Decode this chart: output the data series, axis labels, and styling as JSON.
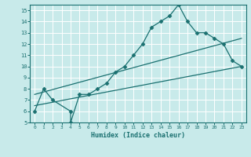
{
  "title": "",
  "xlabel": "Humidex (Indice chaleur)",
  "ylabel": "",
  "bg_color": "#c8eaea",
  "grid_color": "#ffffff",
  "line_color": "#1a7070",
  "xlim": [
    -0.5,
    23.5
  ],
  "ylim": [
    5,
    15.5
  ],
  "yticks": [
    5,
    6,
    7,
    8,
    9,
    10,
    11,
    12,
    13,
    14,
    15
  ],
  "xticks": [
    0,
    1,
    2,
    3,
    4,
    5,
    6,
    7,
    8,
    9,
    10,
    11,
    12,
    13,
    14,
    15,
    16,
    17,
    18,
    19,
    20,
    21,
    22,
    23
  ],
  "line1_x": [
    0,
    1,
    2,
    4,
    4,
    5,
    6,
    7,
    8,
    9,
    10,
    11,
    12,
    13,
    14,
    15,
    16,
    17,
    18,
    19,
    20,
    21,
    22,
    23
  ],
  "line1_y": [
    6,
    8,
    7,
    6,
    5,
    7.5,
    7.5,
    8,
    8.5,
    9.5,
    10,
    11,
    12,
    13.5,
    14,
    14.5,
    15.5,
    14,
    13,
    13,
    12.5,
    12,
    10.5,
    10
  ],
  "line2_x": [
    0,
    23
  ],
  "line2_y": [
    6.5,
    10
  ],
  "line3_x": [
    0,
    23
  ],
  "line3_y": [
    7.5,
    12.5
  ],
  "marker": "D",
  "markersize": 2.5
}
